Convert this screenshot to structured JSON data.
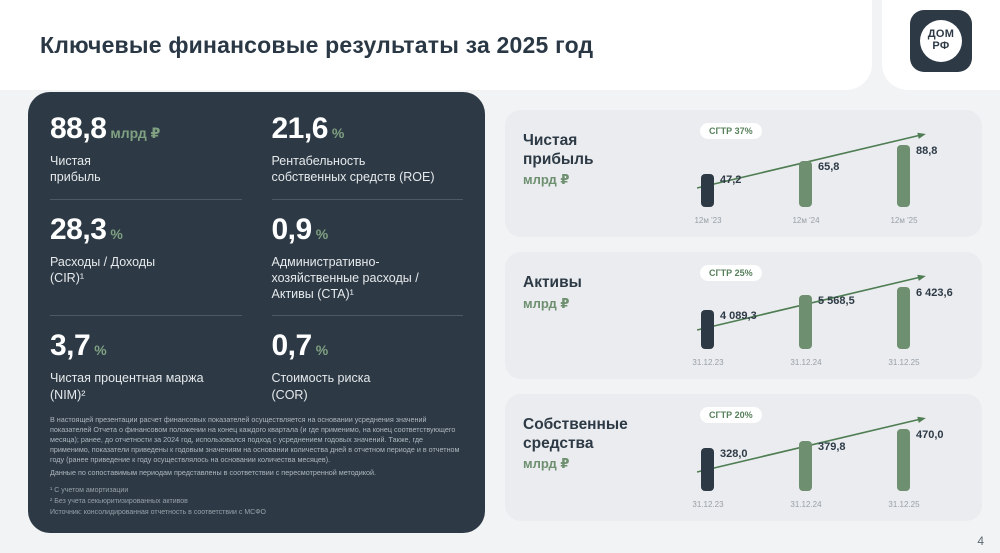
{
  "header": {
    "title": "Ключевые финансовые результаты за 2025 год"
  },
  "logo": {
    "top": "ДОМ",
    "bottom": "РФ"
  },
  "kpis": [
    {
      "value": "88,8",
      "unit": "млрд ₽",
      "label": "Чистая\nприбыль"
    },
    {
      "value": "21,6",
      "unit": "%",
      "label": "Рентабельность\nсобственных средств (ROE)"
    },
    {
      "value": "28,3",
      "unit": "%",
      "label": "Расходы / Доходы\n(CIR)¹"
    },
    {
      "value": "0,9",
      "unit": "%",
      "label": "Административно-\nхозяйственные расходы /\nАктивы (CTA)¹"
    },
    {
      "value": "3,7",
      "unit": "%",
      "label": "Чистая процентная маржа\n(NIM)²"
    },
    {
      "value": "0,7",
      "unit": "%",
      "label": "Стоимость риска\n(COR)"
    }
  ],
  "disclaimer": {
    "p1": "В настоящей презентации расчет финансовых показателей осуществляется на основании усреднения значений показателей Отчета о финансовом положении на конец каждого квартала (и где применимо, на конец соответствующего месяца); ранее, до отчетности за 2024 год, использовался подход с усреднением годовых значений. Также, где применимо, показатели приведены к годовым значениям на основании количества дней в отчетном периоде и в отчетном году (ранее приведение к году осуществлялось на основании количества месяцев).",
    "p2": "Данные по сопоставимым периодам представлены в соответствии с пересмотренной методикой."
  },
  "footnotes": {
    "f1": "¹  С учетом амортизации",
    "f2": "²  Без учета секьюритизированных активов",
    "source": "Источник: консолидированная отчетность в соответствии с МСФО"
  },
  "page_number": "4",
  "colors": {
    "navy": "#2D3A46",
    "green_bar": "#6E9070",
    "green_text": "#7FA081",
    "panel_gray": "#EAECEF",
    "arrow_green": "#4F7D53",
    "badge_text": "#56805A"
  },
  "chart_data": [
    {
      "type": "bar",
      "title": "Чистая\nприбыль",
      "unit": "млрд ₽",
      "cagr": "СГТР 37%",
      "categories": [
        "12м '23",
        "12м '24",
        "12м '25"
      ],
      "values": [
        47.2,
        65.8,
        88.8
      ],
      "value_labels": [
        "47,2",
        "65,8",
        "88,8"
      ],
      "bar_colors": [
        "#2D3A46",
        "#6E9070",
        "#6E9070"
      ],
      "ylim": [
        0,
        88.8
      ],
      "legend": "none",
      "grid": false
    },
    {
      "type": "bar",
      "title": "Активы",
      "unit": "млрд ₽",
      "cagr": "СГТР 25%",
      "categories": [
        "31.12.23",
        "31.12.24",
        "31.12.25"
      ],
      "values": [
        4089.3,
        5568.5,
        6423.6
      ],
      "value_labels": [
        "4 089,3",
        "5 568,5",
        "6 423,6"
      ],
      "bar_colors": [
        "#2D3A46",
        "#6E9070",
        "#6E9070"
      ],
      "ylim": [
        0,
        6423.6
      ],
      "legend": "none",
      "grid": false
    },
    {
      "type": "bar",
      "title": "Собственные\nсредства",
      "unit": "млрд ₽",
      "cagr": "СГТР 20%",
      "categories": [
        "31.12.23",
        "31.12.24",
        "31.12.25"
      ],
      "values": [
        328.0,
        379.8,
        470.0
      ],
      "value_labels": [
        "328,0",
        "379,8",
        "470,0"
      ],
      "bar_colors": [
        "#2D3A46",
        "#6E9070",
        "#6E9070"
      ],
      "ylim": [
        0,
        470.0
      ],
      "legend": "none",
      "grid": false
    }
  ]
}
